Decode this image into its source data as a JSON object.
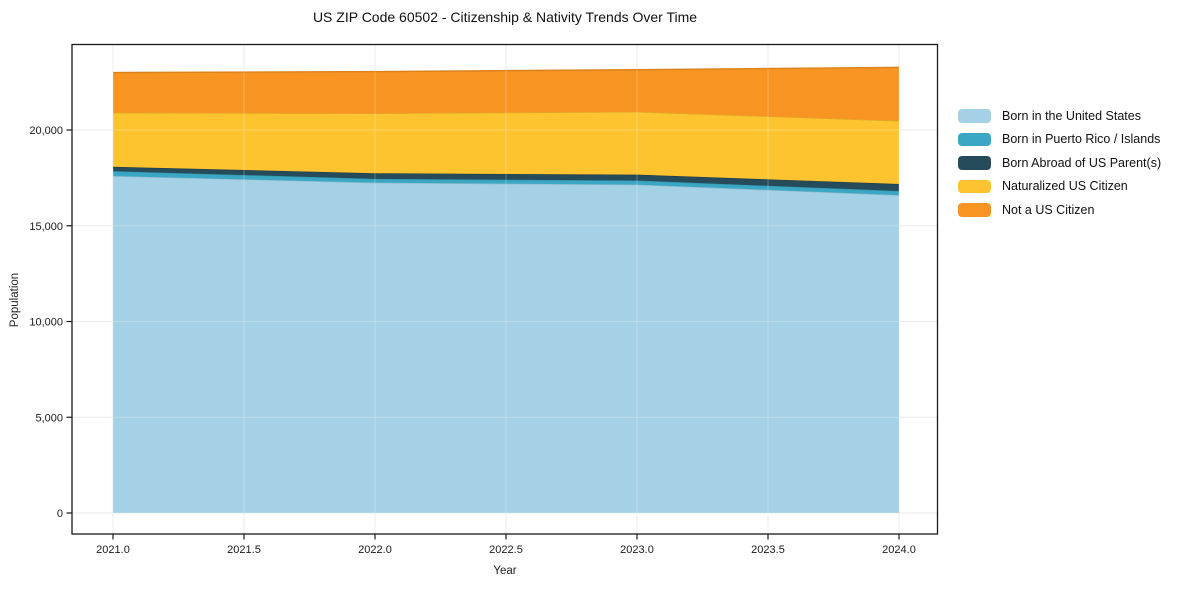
{
  "title": "US ZIP Code 60502 - Citizenship & Nativity Trends Over Time",
  "chart_data": {
    "type": "area",
    "stacked": true,
    "title": "US ZIP Code 60502 - Citizenship & Nativity Trends Over Time",
    "xlabel": "Year",
    "ylabel": "Population",
    "x": [
      2021,
      2022,
      2023,
      2024
    ],
    "series": [
      {
        "name": "Born in the United States",
        "color": "#a4d1e5",
        "values": [
          17600,
          17250,
          17150,
          16600
        ]
      },
      {
        "name": "Born in Puerto Rico / Islands",
        "color": "#3aa8c4",
        "values": [
          250,
          200,
          210,
          215
        ]
      },
      {
        "name": "Born Abroad of US Parent(s)",
        "color": "#264b5a",
        "values": [
          230,
          290,
          310,
          365
        ]
      },
      {
        "name": "Naturalized US Citizen",
        "color": "#fdc42f",
        "values": [
          2820,
          3130,
          3280,
          3300
        ]
      },
      {
        "name": "Not a US Citizen",
        "color": "#f79422",
        "values": [
          2100,
          2180,
          2200,
          2790
        ]
      }
    ],
    "totals": [
      23000,
      23050,
      23150,
      23270
    ],
    "x_ticks": [
      2021.0,
      2021.5,
      2022.0,
      2022.5,
      2023.0,
      2023.5,
      2024.0
    ],
    "x_tick_labels": [
      "2021.0",
      "2021.5",
      "2022.0",
      "2022.5",
      "2023.0",
      "2023.5",
      "2024.0"
    ],
    "y_ticks": [
      0,
      5000,
      10000,
      15000,
      20000
    ],
    "y_tick_labels": [
      "0",
      "5,000",
      "10,000",
      "15,000",
      "20,000"
    ],
    "xlim": [
      2020.84,
      2024.15
    ],
    "ylim": [
      -1100,
      24500
    ],
    "grid": true,
    "legend_position": "right",
    "colors": {
      "grid_under": "#e5e5ec",
      "grid_over": "rgba(255,255,255,0.25)",
      "axis": "#1a1a1a",
      "tick_text": "#1a1a1a",
      "background": "#ffffff"
    }
  }
}
